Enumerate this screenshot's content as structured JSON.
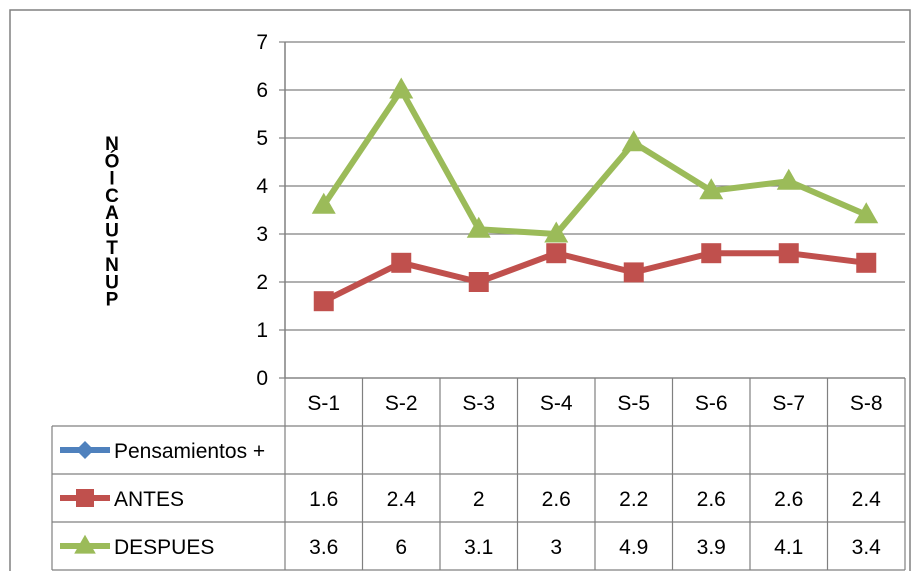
{
  "chart_data": {
    "type": "line",
    "title": "",
    "ylabel": "PUNTUACIÓN",
    "ylabel_display": "NÓICAUTNUP",
    "xlabel": "",
    "categories": [
      "S-1",
      "S-2",
      "S-3",
      "S-4",
      "S-5",
      "S-6",
      "S-7",
      "S-8"
    ],
    "ylim": [
      0,
      7
    ],
    "yticks": [
      "0",
      "1",
      "2",
      "3",
      "4",
      "5",
      "6",
      "7"
    ],
    "grid": true,
    "legend": "data-table",
    "series": [
      {
        "name": "Pensamientos +",
        "color": "#4F81BD",
        "marker": "diamond",
        "values": [
          null,
          null,
          null,
          null,
          null,
          null,
          null,
          null
        ]
      },
      {
        "name": "ANTES",
        "color": "#C0504D",
        "marker": "square",
        "values": [
          1.6,
          2.4,
          2,
          2.6,
          2.2,
          2.6,
          2.6,
          2.4
        ]
      },
      {
        "name": "DESPUES",
        "color": "#9BBB59",
        "marker": "triangle",
        "values": [
          3.6,
          6,
          3.1,
          3,
          4.9,
          3.9,
          4.1,
          3.4
        ]
      }
    ],
    "table_values": [
      [
        "",
        "",
        "",
        "",
        "",
        "",
        "",
        ""
      ],
      [
        "1.6",
        "2.4",
        "2",
        "2.6",
        "2.2",
        "2.6",
        "2.6",
        "2.4"
      ],
      [
        "3.6",
        "6",
        "3.1",
        "3",
        "4.9",
        "3.9",
        "4.1",
        "3.4"
      ]
    ]
  }
}
